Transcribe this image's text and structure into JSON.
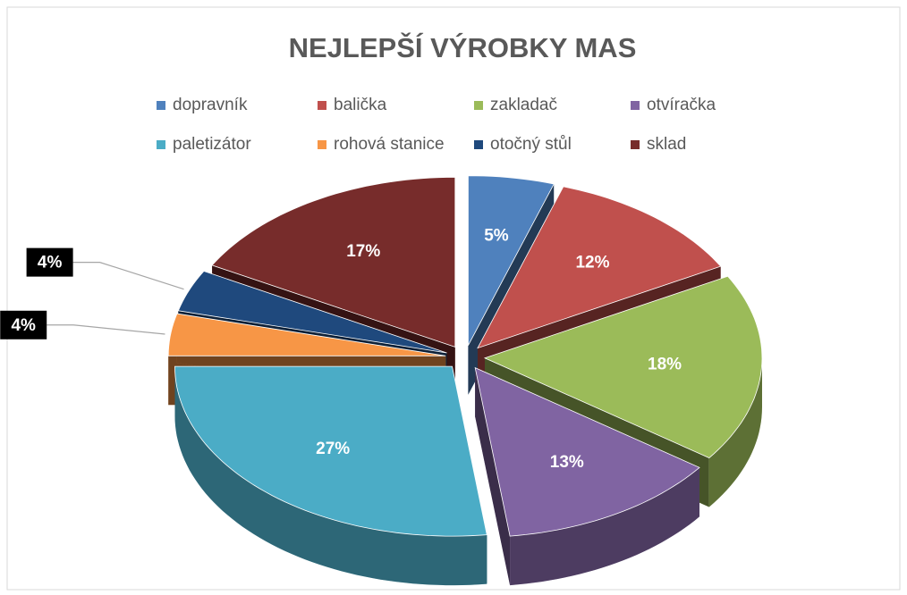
{
  "chart_data": {
    "type": "pie",
    "title": "NEJLEPŠÍ VÝROBKY MAS",
    "categories": [
      "dopravník",
      "balička",
      "zakladač",
      "otvíračka",
      "paletizátor",
      "rohová stanice",
      "otočný stůl",
      "sklad"
    ],
    "values": [
      5,
      12,
      18,
      13,
      27,
      4,
      4,
      17
    ],
    "value_labels": [
      "5%",
      "12%",
      "18%",
      "13%",
      "27%",
      "4%",
      "4%",
      "17%"
    ],
    "colors": [
      "#4f81bd",
      "#c0504d",
      "#9bbb59",
      "#8064a2",
      "#4bacc6",
      "#f79646",
      "#1f497d",
      "#772c2b"
    ],
    "legend": "top"
  }
}
